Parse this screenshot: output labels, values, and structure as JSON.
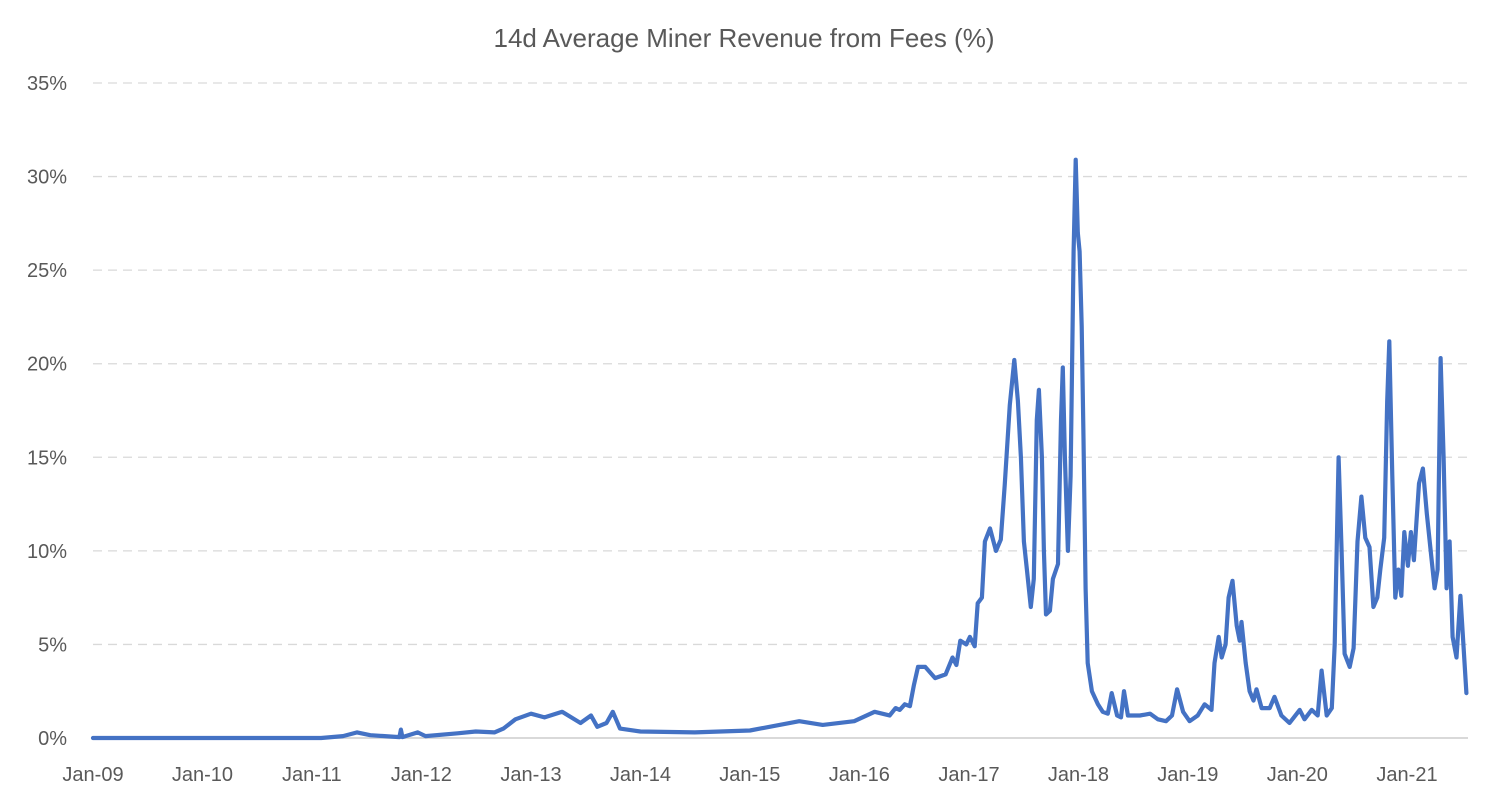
{
  "chart_data": {
    "type": "line",
    "title": "14d Average Miner Revenue from Fees (%)",
    "xlabel": "",
    "ylabel": "",
    "ylim": [
      0,
      35
    ],
    "xlim": [
      "2009-01-01",
      "2021-07-18"
    ],
    "grid": true,
    "legend": "none",
    "line_color": "#4472C4",
    "yticks": [
      0,
      5,
      10,
      15,
      20,
      25,
      30,
      35
    ],
    "ytick_labels": [
      "0%",
      "5%",
      "10%",
      "15%",
      "20%",
      "25%",
      "30%",
      "35%"
    ],
    "xticks": [
      "2009-01-01",
      "2010-01-01",
      "2011-01-01",
      "2012-01-01",
      "2013-01-01",
      "2014-01-01",
      "2015-01-01",
      "2016-01-01",
      "2017-01-01",
      "2018-01-01",
      "2019-01-01",
      "2020-01-01",
      "2021-01-01"
    ],
    "xtick_labels": [
      "Jan-09",
      "Jan-10",
      "Jan-11",
      "Jan-12",
      "Jan-13",
      "Jan-14",
      "Jan-15",
      "Jan-16",
      "Jan-17",
      "Jan-18",
      "Jan-19",
      "Jan-20",
      "Jan-21"
    ],
    "series": [
      {
        "points": [
          [
            "2009-01-01",
            0
          ],
          [
            "2011-02-01",
            0
          ],
          [
            "2011-04-15",
            0.1
          ],
          [
            "2011-06-01",
            0.3
          ],
          [
            "2011-07-15",
            0.15
          ],
          [
            "2011-10-20",
            0.05
          ],
          [
            "2011-10-25",
            0.45
          ],
          [
            "2011-10-30",
            0.05
          ],
          [
            "2011-12-20",
            0.3
          ],
          [
            "2012-01-15",
            0.1
          ],
          [
            "2012-05-01",
            0.25
          ],
          [
            "2012-07-01",
            0.35
          ],
          [
            "2012-09-01",
            0.3
          ],
          [
            "2012-10-01",
            0.5
          ],
          [
            "2012-11-10",
            1.0
          ],
          [
            "2013-01-01",
            1.3
          ],
          [
            "2013-02-15",
            1.1
          ],
          [
            "2013-04-15",
            1.4
          ],
          [
            "2013-06-15",
            0.8
          ],
          [
            "2013-07-20",
            1.2
          ],
          [
            "2013-08-10",
            0.6
          ],
          [
            "2013-09-10",
            0.8
          ],
          [
            "2013-10-01",
            1.4
          ],
          [
            "2013-10-25",
            0.5
          ],
          [
            "2014-01-01",
            0.35
          ],
          [
            "2014-07-01",
            0.3
          ],
          [
            "2015-01-01",
            0.4
          ],
          [
            "2015-06-15",
            0.9
          ],
          [
            "2015-09-01",
            0.7
          ],
          [
            "2015-12-15",
            0.9
          ],
          [
            "2016-02-21",
            1.4
          ],
          [
            "2016-04-11",
            1.2
          ],
          [
            "2016-05-01",
            1.6
          ],
          [
            "2016-05-15",
            1.5
          ],
          [
            "2016-06-01",
            1.8
          ],
          [
            "2016-06-18",
            1.7
          ],
          [
            "2016-07-01",
            2.8
          ],
          [
            "2016-07-15",
            3.8
          ],
          [
            "2016-08-08",
            3.8
          ],
          [
            "2016-09-10",
            3.2
          ],
          [
            "2016-10-15",
            3.4
          ],
          [
            "2016-11-07",
            4.3
          ],
          [
            "2016-11-20",
            3.9
          ],
          [
            "2016-12-03",
            5.2
          ],
          [
            "2016-12-23",
            5.0
          ],
          [
            "2017-01-04",
            5.4
          ],
          [
            "2017-01-20",
            4.9
          ],
          [
            "2017-01-30",
            7.2
          ],
          [
            "2017-02-13",
            7.5
          ],
          [
            "2017-02-23",
            10.5
          ],
          [
            "2017-03-12",
            11.2
          ],
          [
            "2017-04-01",
            10.0
          ],
          [
            "2017-04-17",
            10.6
          ],
          [
            "2017-04-30",
            13.5
          ],
          [
            "2017-05-17",
            17.8
          ],
          [
            "2017-06-01",
            20.2
          ],
          [
            "2017-06-13",
            18
          ],
          [
            "2017-06-23",
            15
          ],
          [
            "2017-07-03",
            10.5
          ],
          [
            "2017-07-13",
            9
          ],
          [
            "2017-07-26",
            7
          ],
          [
            "2017-08-05",
            8.5
          ],
          [
            "2017-08-15",
            17
          ],
          [
            "2017-08-22",
            18.6
          ],
          [
            "2017-09-01",
            15
          ],
          [
            "2017-09-08",
            10
          ],
          [
            "2017-09-15",
            6.6
          ],
          [
            "2017-09-28",
            6.8
          ],
          [
            "2017-10-08",
            8.5
          ],
          [
            "2017-10-25",
            9.3
          ],
          [
            "2017-11-04",
            17
          ],
          [
            "2017-11-10",
            19.8
          ],
          [
            "2017-11-17",
            15
          ],
          [
            "2017-11-27",
            10
          ],
          [
            "2017-12-06",
            14
          ],
          [
            "2017-12-16",
            26
          ],
          [
            "2017-12-23",
            30.9
          ],
          [
            "2017-12-30",
            27
          ],
          [
            "2018-01-05",
            26
          ],
          [
            "2018-01-12",
            22
          ],
          [
            "2018-01-18",
            16
          ],
          [
            "2018-01-25",
            8
          ],
          [
            "2018-02-01",
            4
          ],
          [
            "2018-02-15",
            2.5
          ],
          [
            "2018-03-07",
            1.8
          ],
          [
            "2018-03-23",
            1.4
          ],
          [
            "2018-04-09",
            1.3
          ],
          [
            "2018-04-22",
            2.4
          ],
          [
            "2018-05-10",
            1.2
          ],
          [
            "2018-05-23",
            1.1
          ],
          [
            "2018-06-02",
            2.5
          ],
          [
            "2018-06-15",
            1.2
          ],
          [
            "2018-07-25",
            1.2
          ],
          [
            "2018-08-28",
            1.3
          ],
          [
            "2018-09-23",
            1.0
          ],
          [
            "2018-10-20",
            0.9
          ],
          [
            "2018-11-09",
            1.2
          ],
          [
            "2018-11-26",
            2.6
          ],
          [
            "2018-12-16",
            1.4
          ],
          [
            "2019-01-07",
            0.9
          ],
          [
            "2019-02-03",
            1.2
          ],
          [
            "2019-02-26",
            1.8
          ],
          [
            "2019-03-21",
            1.5
          ],
          [
            "2019-03-31",
            4
          ],
          [
            "2019-04-14",
            5.4
          ],
          [
            "2019-04-24",
            4.3
          ],
          [
            "2019-05-07",
            5.0
          ],
          [
            "2019-05-17",
            7.5
          ],
          [
            "2019-05-30",
            8.4
          ],
          [
            "2019-06-13",
            6
          ],
          [
            "2019-06-23",
            5.2
          ],
          [
            "2019-06-29",
            6.2
          ],
          [
            "2019-07-13",
            4
          ],
          [
            "2019-07-26",
            2.5
          ],
          [
            "2019-08-08",
            2.0
          ],
          [
            "2019-08-18",
            2.6
          ],
          [
            "2019-09-04",
            1.6
          ],
          [
            "2019-10-01",
            1.6
          ],
          [
            "2019-10-17",
            2.2
          ],
          [
            "2019-11-09",
            1.2
          ],
          [
            "2019-12-06",
            0.8
          ],
          [
            "2020-01-09",
            1.5
          ],
          [
            "2020-01-25",
            1.0
          ],
          [
            "2020-02-18",
            1.5
          ],
          [
            "2020-03-09",
            1.2
          ],
          [
            "2020-03-22",
            3.6
          ],
          [
            "2020-04-08",
            1.2
          ],
          [
            "2020-04-25",
            1.6
          ],
          [
            "2020-05-05",
            5
          ],
          [
            "2020-05-18",
            15
          ],
          [
            "2020-05-28",
            10
          ],
          [
            "2020-06-07",
            4.5
          ],
          [
            "2020-06-24",
            3.8
          ],
          [
            "2020-07-07",
            4.8
          ],
          [
            "2020-07-20",
            10.5
          ],
          [
            "2020-08-02",
            12.9
          ],
          [
            "2020-08-15",
            10.7
          ],
          [
            "2020-08-29",
            10.2
          ],
          [
            "2020-09-11",
            7
          ],
          [
            "2020-09-24",
            7.5
          ],
          [
            "2020-10-04",
            9
          ],
          [
            "2020-10-17",
            10.7
          ],
          [
            "2020-10-27",
            18
          ],
          [
            "2020-11-03",
            21.2
          ],
          [
            "2020-11-13",
            14
          ],
          [
            "2020-11-23",
            7.5
          ],
          [
            "2020-12-03",
            9
          ],
          [
            "2020-12-13",
            7.6
          ],
          [
            "2020-12-23",
            11
          ],
          [
            "2021-01-04",
            9.2
          ],
          [
            "2021-01-14",
            11
          ],
          [
            "2021-01-24",
            9.5
          ],
          [
            "2021-02-10",
            13.6
          ],
          [
            "2021-02-23",
            14.4
          ],
          [
            "2021-03-08",
            12
          ],
          [
            "2021-03-21",
            10
          ],
          [
            "2021-04-03",
            8
          ],
          [
            "2021-04-13",
            9
          ],
          [
            "2021-04-23",
            20.3
          ],
          [
            "2021-05-03",
            15
          ],
          [
            "2021-05-13",
            8
          ],
          [
            "2021-05-23",
            10.5
          ],
          [
            "2021-06-02",
            5.4
          ],
          [
            "2021-06-15",
            4.3
          ],
          [
            "2021-06-28",
            7.6
          ],
          [
            "2021-07-08",
            5
          ],
          [
            "2021-07-18",
            2.4
          ]
        ]
      }
    ]
  }
}
